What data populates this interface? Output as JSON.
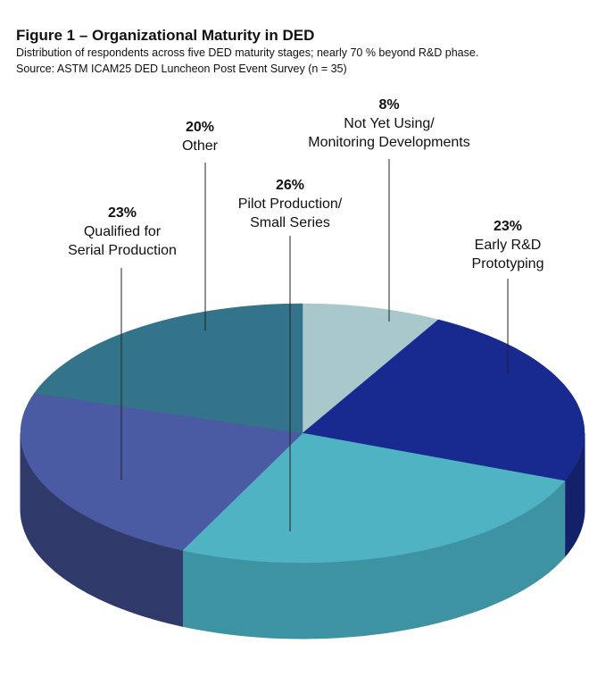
{
  "chart_data": {
    "type": "pie",
    "title": "Figure 1 – Organizational Maturity in DED",
    "subtitle": "Distribution of respondents across five DED maturity stages; nearly 70 % beyond R&D phase.",
    "source": "Source: ASTM ICAM25 DED Luncheon Post Event Survey (n = 35)",
    "three_d": true,
    "slices": [
      {
        "label_lines": [
          "Not Yet Using/",
          "Monitoring Developments"
        ],
        "value": 8,
        "pct_label": "8%",
        "color": "#a8c8cc",
        "side_color": "#8fb0b4"
      },
      {
        "label_lines": [
          "Early R&D",
          "Prototyping"
        ],
        "value": 23,
        "pct_label": "23%",
        "color": "#182a8f",
        "side_color": "#14206a"
      },
      {
        "label_lines": [
          "Pilot Production/",
          "Small Series"
        ],
        "value": 26,
        "pct_label": "26%",
        "color": "#4fb3c3",
        "side_color": "#3e93a3"
      },
      {
        "label_lines": [
          "Qualified for",
          "Serial Production"
        ],
        "value": 23,
        "pct_label": "23%",
        "color": "#4a5aa3",
        "side_color": "#2f3a6a"
      },
      {
        "label_lines": [
          "Other"
        ],
        "value": 20,
        "pct_label": "20%",
        "color": "#33748a",
        "side_color": "#255a6b"
      }
    ]
  }
}
